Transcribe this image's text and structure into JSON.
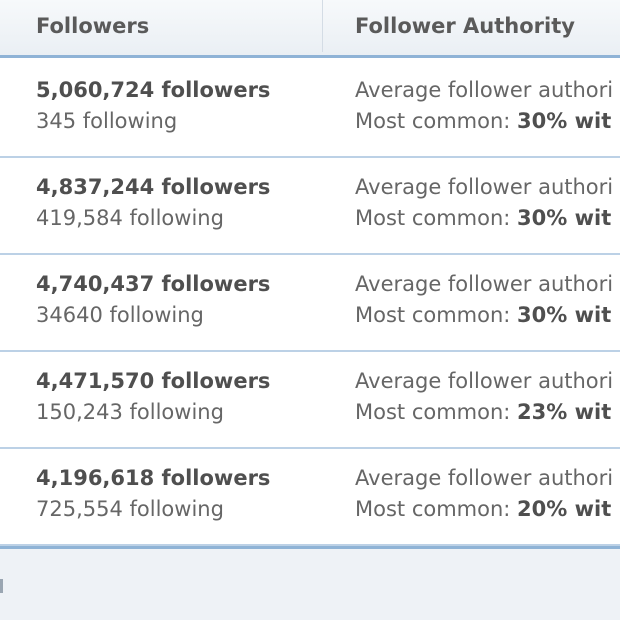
{
  "table": {
    "headers": {
      "followers": "Followers",
      "authority": "Follower Authority"
    },
    "rows": [
      {
        "followers": "5,060,724 followers",
        "following": "345 following",
        "avg_label": "Average follower authori",
        "common_label": "Most common: ",
        "common_value": "30% wit"
      },
      {
        "followers": "4,837,244 followers",
        "following": "419,584 following",
        "avg_label": "Average follower authori",
        "common_label": "Most common: ",
        "common_value": "30% wit"
      },
      {
        "followers": "4,740,437 followers",
        "following": "34640 following",
        "avg_label": "Average follower authori",
        "common_label": "Most common: ",
        "common_value": "30% wit"
      },
      {
        "followers": "4,471,570 followers",
        "following": "150,243 following",
        "avg_label": "Average follower authori",
        "common_label": "Most common: ",
        "common_value": "23% wit"
      },
      {
        "followers": "4,196,618 followers",
        "following": "725,554 following",
        "avg_label": "Average follower authori",
        "common_label": "Most common: ",
        "common_value": "20% wit"
      }
    ]
  },
  "colors": {
    "header_border": "#8fb3d6",
    "row_divider": "#bcd1e6",
    "header_bg": "#eaeff4"
  }
}
